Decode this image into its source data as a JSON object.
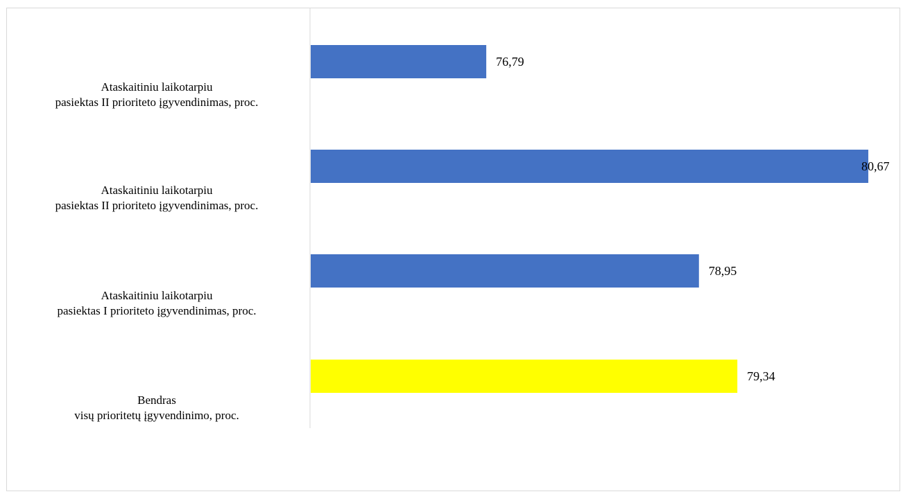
{
  "chart_data": {
    "type": "bar",
    "orientation": "horizontal",
    "categories": [
      [
        "Ataskaitiniu laikotarpiu",
        "pasiektas II prioriteto įgyvendinimas, proc."
      ],
      [
        "Ataskaitiniu laikotarpiu",
        "pasiektas II prioriteto įgyvendinimas, proc."
      ],
      [
        "Ataskaitiniu laikotarpiu",
        "pasiektas I prioriteto įgyvendinimas, proc."
      ],
      [
        "Bendras",
        "visų prioritetų įgyvendinimo, proc."
      ]
    ],
    "values": [
      76.79,
      80.67,
      78.95,
      79.34
    ],
    "data_labels": [
      "76,79",
      "80,67",
      "78,95",
      "79,34"
    ],
    "bar_colors": [
      "#4472C4",
      "#4472C4",
      "#4472C4",
      "#FFFF00"
    ],
    "axis_line_color": "#d9d9d9",
    "xlim": [
      75.0,
      80.79
    ],
    "x_axis_visible": false,
    "grid": false,
    "legend": "none"
  }
}
